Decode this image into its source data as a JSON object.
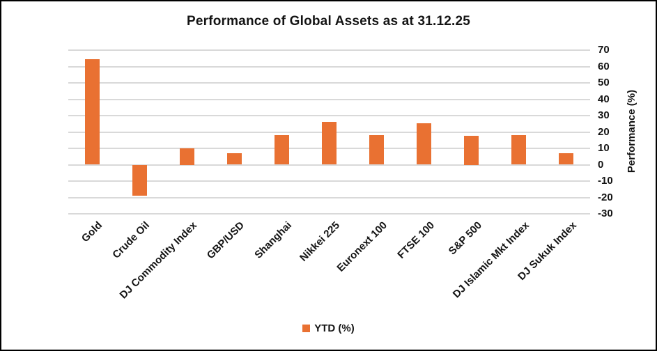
{
  "chart_data": {
    "type": "bar",
    "title": "Performance of Global Assets as at 31.12.25",
    "categories": [
      "Gold",
      "Crude Oil",
      "DJ Commodity Index",
      "GBP/USD",
      "Shanghai",
      "Nikkei 225",
      "Euronext 100",
      "FTSE 100",
      "S&P 500",
      "DJ Islamic Mkt Index",
      "DJ Sukuk Index"
    ],
    "series": [
      {
        "name": "YTD (%)",
        "values": [
          64.5,
          -19,
          10,
          7,
          18,
          26,
          18,
          25.5,
          17.5,
          18,
          7
        ]
      }
    ],
    "xlabel": "",
    "ylabel": "Performance (%)",
    "ylim": [
      -30,
      70
    ],
    "yticks": [
      70,
      60,
      50,
      40,
      30,
      20,
      10,
      0,
      -10,
      -20,
      -30
    ],
    "grid": true,
    "legend_position": "bottom",
    "bar_color": "#E97132",
    "gridline_color": "#D9D9D9",
    "text_color": "#141414"
  }
}
